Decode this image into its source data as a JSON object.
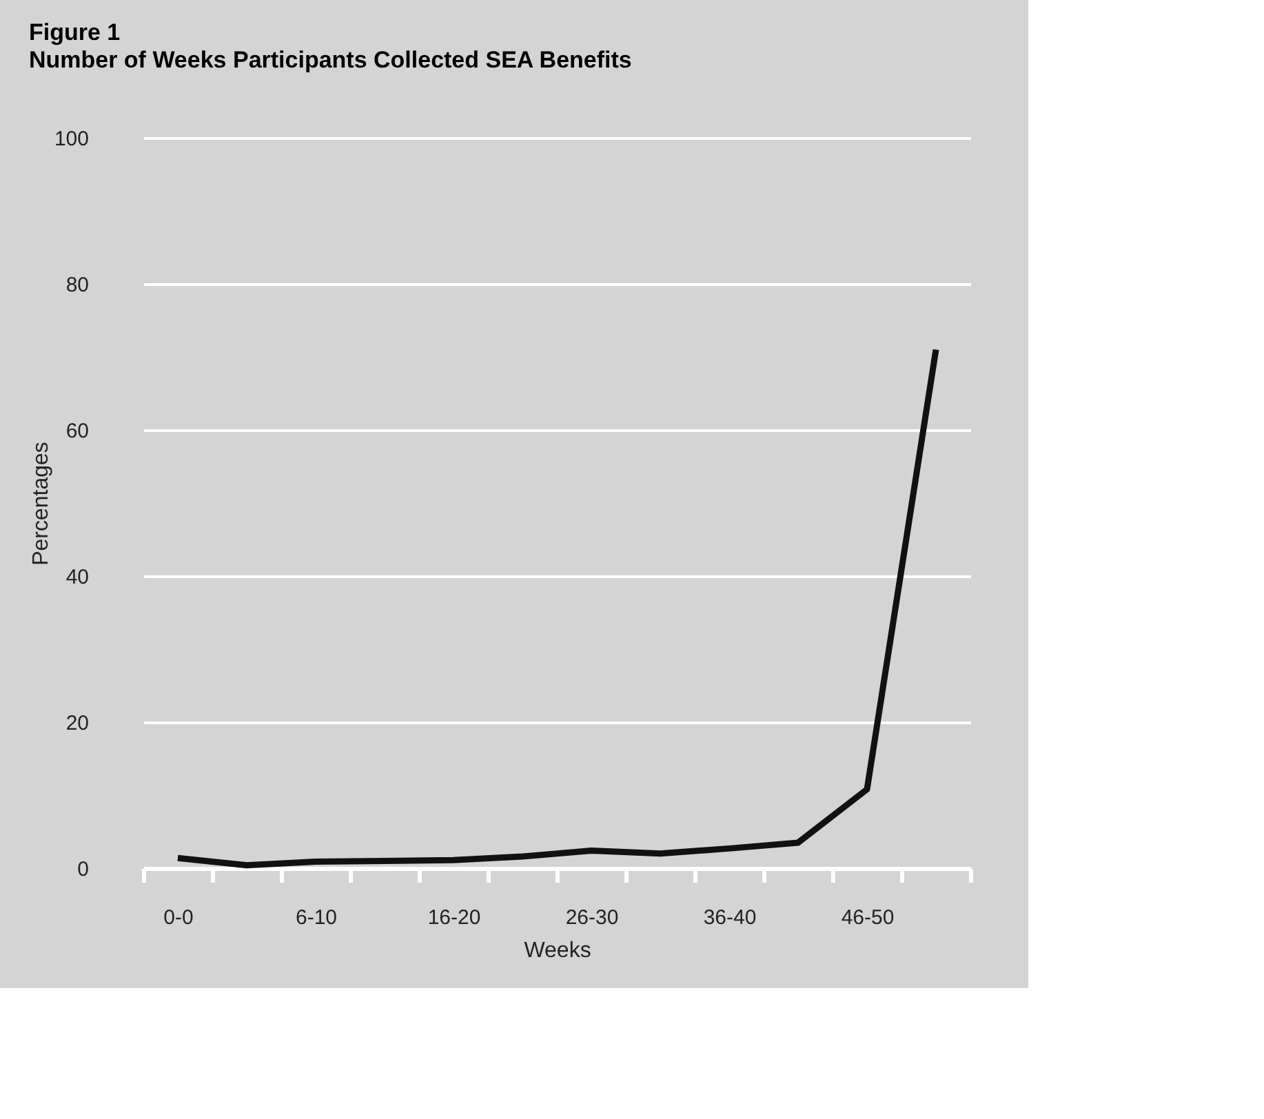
{
  "chart_data": {
    "type": "line",
    "title": "Figure 1",
    "subtitle": "Number of Weeks Participants Collected SEA Benefits",
    "xlabel": "Weeks",
    "ylabel": "Percentages",
    "categories": [
      "0-0",
      null,
      "6-10",
      null,
      "16-20",
      null,
      "26-30",
      null,
      "36-40",
      null,
      "46-50",
      null
    ],
    "series": [
      {
        "color": "#111111",
        "values": [
          1.4,
          0.4,
          0.9,
          1.0,
          1.1,
          1.6,
          2.4,
          2.0,
          2.7,
          3.5,
          10.8,
          71
        ]
      }
    ],
    "ylim": [
      0,
      100
    ],
    "yticks": [
      0,
      20,
      40,
      60,
      80,
      100
    ],
    "grid": "y",
    "legend": false,
    "marker": "none",
    "line_style": "solid"
  }
}
